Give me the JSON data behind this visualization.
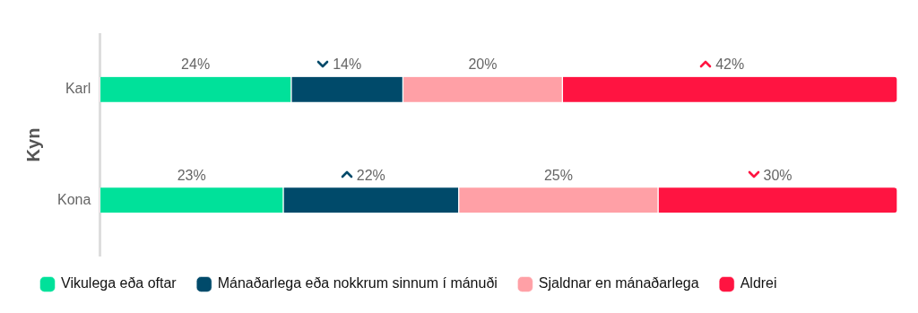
{
  "chart_data": {
    "type": "bar",
    "orientation": "horizontal",
    "stacked": true,
    "ylabel": "Kyn",
    "categories": [
      "Karl",
      "Kona"
    ],
    "xlim": [
      0,
      100
    ],
    "tick_labels": "y",
    "legend": "bottom",
    "series": [
      {
        "name": "Vikulega eða oftar",
        "color": "#00e19a",
        "values": [
          24,
          23
        ],
        "value_labels": [
          "24%",
          "23%"
        ]
      },
      {
        "name": "Mánaðarlega eða nokkrum sinnum í mánuði",
        "color": "#004a6a",
        "values": [
          14,
          22
        ],
        "value_labels": [
          "14%",
          "22%"
        ]
      },
      {
        "name": "Sjaldnar en mánaðarlega",
        "color": "#ffa0a6",
        "values": [
          20,
          25
        ],
        "value_labels": [
          "20%",
          "25%"
        ]
      },
      {
        "name": "Aldrei",
        "color": "#ff1441",
        "values": [
          42,
          30
        ],
        "value_labels": [
          "42%",
          "30%"
        ]
      }
    ]
  }
}
